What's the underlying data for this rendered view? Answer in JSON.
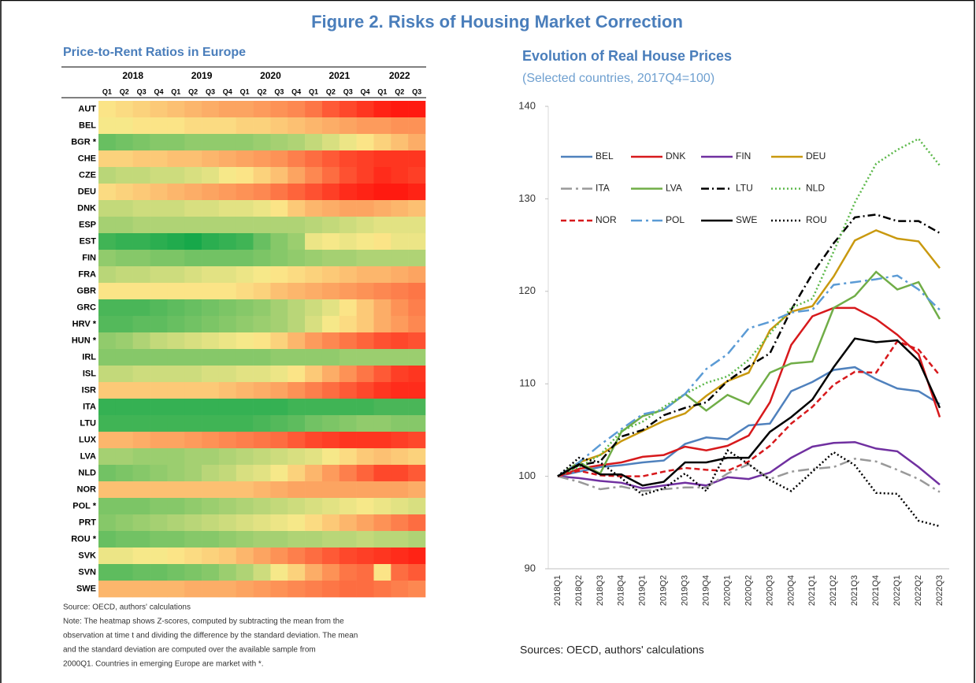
{
  "title": "Figure 2. Risks of Housing Market Correction",
  "chart_data": [
    {
      "type": "heatmap",
      "title": "Price-to-Rent Ratios in Europe",
      "column_groups": [
        "2018",
        "2019",
        "2020",
        "2021",
        "2022"
      ],
      "columns": [
        "Q1",
        "Q2",
        "Q3",
        "Q4",
        "Q1",
        "Q2",
        "Q3",
        "Q4",
        "Q1",
        "Q2",
        "Q3",
        "Q4",
        "Q1",
        "Q2",
        "Q3",
        "Q4",
        "Q1",
        "Q2",
        "Q3"
      ],
      "rows": [
        "AUT",
        "BEL",
        "BGR *",
        "CHE",
        "CZE",
        "DEU",
        "DNK",
        "ESP",
        "EST",
        "FIN",
        "FRA",
        "GBR",
        "GRC",
        "HRV *",
        "HUN *",
        "IRL",
        "ISL",
        "ISR",
        "ITA",
        "LTU",
        "LUX",
        "LVA",
        "NLD",
        "NOR",
        "POL *",
        "PRT",
        "ROU *",
        "SVK",
        "SVN",
        "SWE"
      ],
      "values": [
        [
          0.3,
          0.4,
          0.5,
          0.6,
          0.7,
          0.8,
          0.9,
          1.0,
          1.0,
          1.1,
          1.2,
          1.3,
          1.5,
          1.8,
          2.0,
          2.2,
          2.4,
          2.5,
          2.6
        ],
        [
          0.2,
          0.2,
          0.3,
          0.3,
          0.3,
          0.4,
          0.4,
          0.4,
          0.5,
          0.5,
          0.6,
          0.7,
          0.8,
          0.9,
          1.0,
          1.1,
          1.1,
          1.2,
          1.2
        ],
        [
          -1.2,
          -1.1,
          -1.0,
          -0.9,
          -0.9,
          -0.8,
          -0.8,
          -0.8,
          -0.8,
          -0.7,
          -0.6,
          -0.5,
          -0.3,
          -0.1,
          0.1,
          0.3,
          0.5,
          0.7,
          0.9
        ],
        [
          0.5,
          0.5,
          0.6,
          0.6,
          0.7,
          0.7,
          0.8,
          0.9,
          1.0,
          1.1,
          1.2,
          1.4,
          1.6,
          1.8,
          2.0,
          2.1,
          2.2,
          2.2,
          2.2
        ],
        [
          -0.4,
          -0.3,
          -0.3,
          -0.2,
          -0.2,
          -0.1,
          0,
          0.2,
          0.3,
          0.5,
          0.7,
          1.0,
          1.3,
          1.6,
          1.9,
          2.1,
          2.3,
          2.2,
          2.1
        ],
        [
          0.4,
          0.5,
          0.6,
          0.7,
          0.8,
          0.9,
          1.0,
          1.1,
          1.2,
          1.3,
          1.5,
          1.7,
          1.9,
          2.1,
          2.3,
          2.4,
          2.5,
          2.5,
          2.4
        ],
        [
          -0.3,
          -0.3,
          -0.2,
          -0.2,
          -0.2,
          -0.1,
          -0.1,
          0,
          0,
          0.1,
          0.3,
          0.6,
          0.8,
          0.9,
          1.0,
          1.0,
          0.9,
          0.8,
          0.7
        ],
        [
          -0.6,
          -0.6,
          -0.5,
          -0.5,
          -0.5,
          -0.5,
          -0.5,
          -0.5,
          -0.5,
          -0.5,
          -0.5,
          -0.5,
          -0.4,
          -0.3,
          -0.2,
          -0.1,
          0,
          0,
          0
        ],
        [
          -1.6,
          -1.7,
          -1.7,
          -1.8,
          -1.9,
          -2.0,
          -1.8,
          -1.7,
          -1.6,
          -1.2,
          -0.9,
          -0.7,
          0.1,
          0.2,
          0.1,
          0.2,
          0.3,
          0.1,
          0.1
        ],
        [
          -0.8,
          -0.9,
          -0.9,
          -1.0,
          -1.0,
          -1.1,
          -1.1,
          -1.1,
          -1.1,
          -1.0,
          -0.9,
          -0.8,
          -0.7,
          -0.6,
          -0.6,
          -0.5,
          -0.5,
          -0.5,
          -0.5
        ],
        [
          -0.4,
          -0.3,
          -0.3,
          -0.2,
          -0.2,
          -0.1,
          0,
          0,
          0.1,
          0.2,
          0.3,
          0.4,
          0.5,
          0.6,
          0.7,
          0.8,
          0.8,
          0.9,
          1.0
        ],
        [
          0.3,
          0.3,
          0.3,
          0.3,
          0.3,
          0.3,
          0.3,
          0.3,
          0.4,
          0.5,
          0.7,
          0.8,
          0.9,
          1.0,
          1.1,
          1.2,
          1.3,
          1.4,
          1.5
        ],
        [
          -1.5,
          -1.5,
          -1.5,
          -1.4,
          -1.3,
          -1.2,
          -1.1,
          -1.0,
          -0.9,
          -0.8,
          -0.6,
          -0.4,
          -0.2,
          0,
          0.3,
          0.6,
          0.9,
          1.2,
          1.4
        ],
        [
          -1.4,
          -1.4,
          -1.3,
          -1.3,
          -1.2,
          -1.1,
          -1.0,
          -0.9,
          -0.8,
          -0.7,
          -0.6,
          -0.4,
          -0.1,
          0.2,
          0.4,
          0.6,
          0.9,
          1.1,
          1.3
        ],
        [
          -0.8,
          -0.7,
          -0.5,
          -0.3,
          -0.2,
          -0.1,
          0,
          0.1,
          0.2,
          0.3,
          0.5,
          0.8,
          1.1,
          1.3,
          1.5,
          1.7,
          1.9,
          2.0,
          1.9
        ],
        [
          -0.9,
          -0.9,
          -0.9,
          -0.9,
          -0.9,
          -0.9,
          -0.9,
          -0.9,
          -0.9,
          -0.9,
          -0.8,
          -0.8,
          -0.8,
          -0.8,
          -0.7,
          -0.7,
          -0.7,
          -0.7,
          -0.7
        ],
        [
          -0.3,
          -0.3,
          -0.2,
          -0.2,
          -0.2,
          -0.2,
          -0.1,
          -0.1,
          0,
          0,
          0.1,
          0.3,
          0.6,
          0.9,
          1.2,
          1.5,
          1.8,
          2.1,
          2.2
        ],
        [
          0.6,
          0.6,
          0.6,
          0.6,
          0.6,
          0.6,
          0.6,
          0.7,
          0.8,
          0.9,
          1.0,
          1.2,
          1.4,
          1.6,
          1.8,
          2.0,
          2.2,
          2.3,
          2.3
        ],
        [
          -1.7,
          -1.7,
          -1.7,
          -1.7,
          -1.7,
          -1.7,
          -1.7,
          -1.7,
          -1.7,
          -1.7,
          -1.7,
          -1.6,
          -1.6,
          -1.6,
          -1.6,
          -1.6,
          -1.5,
          -1.5,
          -1.5
        ],
        [
          -1.6,
          -1.6,
          -1.6,
          -1.6,
          -1.6,
          -1.6,
          -1.6,
          -1.6,
          -1.6,
          -1.5,
          -1.4,
          -1.3,
          -1.1,
          -1.0,
          -0.9,
          -0.8,
          -0.8,
          -0.9,
          -0.9
        ],
        [
          0.8,
          0.8,
          0.9,
          1.0,
          1.0,
          1.1,
          1.2,
          1.3,
          1.4,
          1.5,
          1.6,
          1.8,
          2.0,
          2.1,
          2.2,
          2.2,
          2.2,
          2.1,
          2.0
        ],
        [
          -0.6,
          -0.6,
          -0.7,
          -0.7,
          -0.7,
          -0.6,
          -0.6,
          -0.5,
          -0.4,
          -0.3,
          -0.2,
          -0.1,
          0,
          0.2,
          0.4,
          0.6,
          0.7,
          0.6,
          0.5
        ],
        [
          -1.1,
          -1.0,
          -0.9,
          -0.8,
          -0.7,
          -0.6,
          -0.4,
          -0.3,
          -0.1,
          0,
          0.2,
          0.5,
          0.8,
          1.1,
          1.4,
          1.7,
          2.0,
          2.0,
          1.8
        ],
        [
          0.7,
          0.7,
          0.7,
          0.7,
          0.7,
          0.7,
          0.7,
          0.7,
          0.7,
          0.8,
          0.9,
          1.0,
          1.0,
          1.0,
          1.0,
          1.0,
          1.0,
          1.0,
          0.9
        ],
        [
          -1.0,
          -1.0,
          -1.0,
          -0.9,
          -0.9,
          -0.8,
          -0.7,
          -0.6,
          -0.5,
          -0.4,
          -0.3,
          -0.2,
          -0.1,
          0,
          0.1,
          0.2,
          0.1,
          0,
          -0.1
        ],
        [
          -0.9,
          -0.8,
          -0.7,
          -0.6,
          -0.5,
          -0.4,
          -0.3,
          -0.2,
          -0.1,
          0,
          0.1,
          0.2,
          0.4,
          0.6,
          0.8,
          1.0,
          1.2,
          1.4,
          1.6
        ],
        [
          -1.2,
          -1.1,
          -1.1,
          -1.0,
          -1.0,
          -0.9,
          -0.9,
          -0.8,
          -0.7,
          -0.6,
          -0.6,
          -0.5,
          -0.5,
          -0.4,
          -0.4,
          -0.3,
          -0.4,
          -0.4,
          -0.5
        ],
        [
          0.1,
          0.1,
          0.2,
          0.2,
          0.3,
          0.4,
          0.5,
          0.6,
          0.8,
          1.0,
          1.2,
          1.4,
          1.6,
          1.8,
          2.0,
          2.1,
          2.2,
          2.3,
          2.4
        ],
        [
          -1.3,
          -1.3,
          -1.2,
          -1.2,
          -1.1,
          -1.0,
          -0.9,
          -0.7,
          -0.5,
          -0.2,
          0.2,
          0.5,
          0.9,
          1.2,
          1.5,
          1.6,
          0.3,
          1.6,
          1.8
        ],
        [
          0.8,
          0.8,
          0.8,
          0.8,
          0.8,
          0.9,
          0.9,
          0.9,
          1.0,
          1.1,
          1.2,
          1.3,
          1.4,
          1.5,
          1.6,
          1.6,
          1.5,
          1.4,
          1.3
        ]
      ],
      "zlim": [
        -2,
        2.5
      ],
      "colors": [
        "#17a84a",
        "#fbe98a",
        "#ff1a10"
      ],
      "source": "Source: OECD, authors' calculations",
      "note": [
        "Note: The heatmap shows Z-scores, computed by subtracting the mean from the",
        "observation at time t and dividing the difference by the standard deviation. The mean",
        "and the standard deviation are computed over the available sample from",
        "2000Q1. Countries in emerging Europe are market with *."
      ]
    },
    {
      "type": "line",
      "title": "Evolution of Real House Prices",
      "subtitle": "(Selected countries, 2017Q4=100)",
      "categories": [
        "2018Q1",
        "2018Q2",
        "2018Q3",
        "2018Q4",
        "2019Q1",
        "2019Q2",
        "2019Q3",
        "2019Q4",
        "2020Q1",
        "2020Q2",
        "2020Q3",
        "2020Q4",
        "2021Q1",
        "2021Q2",
        "2021Q3",
        "2021Q4",
        "2022Q1",
        "2022Q2",
        "2022Q3"
      ],
      "ylim": [
        90,
        140
      ],
      "yticks": [
        90,
        100,
        110,
        120,
        130,
        140
      ],
      "series": [
        {
          "name": "BEL",
          "color": "#4f81bd",
          "style": "solid",
          "values": [
            100,
            100.5,
            101,
            101.2,
            101.5,
            101.7,
            103.5,
            104.2,
            104,
            105.5,
            105.7,
            109.2,
            110.2,
            111.5,
            111.8,
            110.5,
            109.5,
            109.2,
            107.8
          ]
        },
        {
          "name": "DNK",
          "color": "#d7191c",
          "style": "solid",
          "values": [
            100,
            100.8,
            101.2,
            101.5,
            102.1,
            102.3,
            103.2,
            102.8,
            103.3,
            104.4,
            108.0,
            114.2,
            117.3,
            118.2,
            118.2,
            117.0,
            115.3,
            113.2,
            106.4
          ]
        },
        {
          "name": "FIN",
          "color": "#7030a0",
          "style": "solid",
          "values": [
            100,
            99.8,
            99.5,
            99.3,
            98.7,
            99.0,
            99.3,
            99.0,
            99.9,
            99.7,
            100.4,
            102.0,
            103.2,
            103.6,
            103.7,
            103.0,
            102.7,
            101.0,
            99.1
          ]
        },
        {
          "name": "DEU",
          "color": "#c9990f",
          "style": "solid",
          "values": [
            100,
            101.5,
            102.3,
            103.8,
            104.9,
            106.0,
            106.8,
            108.7,
            110.3,
            111.2,
            115.8,
            117.8,
            118.4,
            121.6,
            125.5,
            126.6,
            125.7,
            125.4,
            122.5
          ]
        },
        {
          "name": "ITA",
          "color": "#999999",
          "style": "longdashdot",
          "values": [
            100,
            99.4,
            98.6,
            98.9,
            98.4,
            98.6,
            98.8,
            98.8,
            100.3,
            101.3,
            99.7,
            100.5,
            100.8,
            101.0,
            101.9,
            101.6,
            100.7,
            99.7,
            98.3
          ]
        },
        {
          "name": "LVA",
          "color": "#70ad47",
          "style": "solid",
          "values": [
            100,
            101.5,
            100.3,
            104.8,
            106.5,
            107.2,
            108.9,
            107.1,
            108.8,
            107.8,
            111.2,
            112.2,
            112.4,
            118.2,
            119.5,
            122.1,
            120.2,
            121.0,
            117.0
          ]
        },
        {
          "name": "LTU",
          "color": "#000000",
          "style": "dashdot",
          "values": [
            100,
            101.2,
            101.6,
            104.3,
            105.0,
            106.6,
            107.4,
            108.0,
            110.3,
            111.9,
            113.3,
            118.0,
            121.9,
            125.2,
            128.0,
            128.3,
            127.6,
            127.6,
            126.3
          ]
        },
        {
          "name": "NLD",
          "color": "#5cb84a",
          "style": "dot",
          "values": [
            100,
            101.0,
            102.3,
            104.9,
            105.9,
            107.5,
            108.9,
            110.1,
            110.8,
            112.6,
            115.4,
            118.2,
            119.2,
            124.3,
            129.6,
            133.8,
            135.3,
            136.5,
            133.6
          ]
        },
        {
          "name": "NOR",
          "color": "#d7191c",
          "style": "dash",
          "values": [
            100,
            100.6,
            100.1,
            100.0,
            100.0,
            100.5,
            100.9,
            100.7,
            100.6,
            101.6,
            103.3,
            105.7,
            107.5,
            109.9,
            111.3,
            111.2,
            114.6,
            113.7,
            110.9
          ]
        },
        {
          "name": "POL",
          "color": "#5b9bd5",
          "style": "longdashdot",
          "values": [
            100,
            101.5,
            103.4,
            105.1,
            106.7,
            107.2,
            108.9,
            111.6,
            113.2,
            116.0,
            116.7,
            117.7,
            118.0,
            120.7,
            121.0,
            121.3,
            121.7,
            120.2,
            118.0
          ]
        },
        {
          "name": "SWE",
          "color": "#000000",
          "style": "solid",
          "values": [
            100,
            101.3,
            100.2,
            100.2,
            99.0,
            99.4,
            101.5,
            101.5,
            102.0,
            102.0,
            104.8,
            106.4,
            108.3,
            111.8,
            114.9,
            114.5,
            114.7,
            112.5,
            107.4
          ]
        },
        {
          "name": "ROU",
          "color": "#000000",
          "style": "dot",
          "values": [
            100,
            102.0,
            101.5,
            99.8,
            98.0,
            98.7,
            100.3,
            98.4,
            102.8,
            101.3,
            99.6,
            98.4,
            100.5,
            102.6,
            101.2,
            98.2,
            98.1,
            95.2,
            94.6
          ]
        }
      ],
      "source": "Sources: OECD, authors' calculations"
    }
  ]
}
